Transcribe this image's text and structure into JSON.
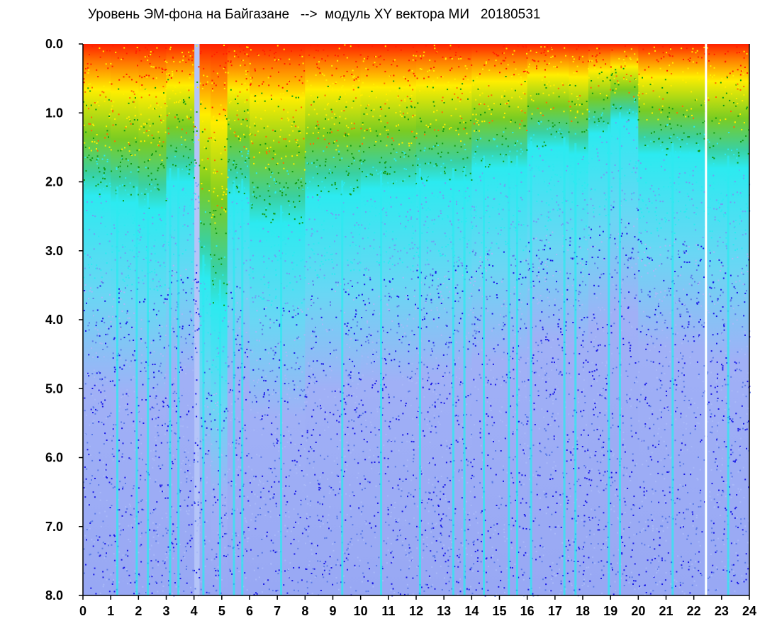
{
  "chart_data": {
    "type": "heatmap",
    "title": "Уровень ЭМ-фона на Байгазане   -->  модуль XY вектора МИ   20180531",
    "xlabel": "",
    "ylabel": "",
    "x_ticks": [
      "0",
      "1",
      "2",
      "3",
      "4",
      "5",
      "6",
      "7",
      "8",
      "9",
      "10",
      "11",
      "12",
      "13",
      "14",
      "15",
      "16",
      "17",
      "18",
      "19",
      "20",
      "21",
      "22",
      "23",
      "24"
    ],
    "y_ticks": [
      "0.0",
      "1.0",
      "2.0",
      "3.0",
      "4.0",
      "5.0",
      "6.0",
      "7.0",
      "8.0"
    ],
    "xlim": [
      0,
      24
    ],
    "ylim": [
      0,
      8
    ],
    "y_inverted": true,
    "grid": false,
    "color_scale": [
      "#ff2a00",
      "#ffff00",
      "#1a9a1a",
      "#22eef0",
      "#9aaaf5",
      "#1010e0"
    ],
    "colors": {
      "background": "#ffffff",
      "axis": "#000000",
      "bright_blue": "#1a1ae6",
      "light_blue": "#a8b8f8",
      "cyan": "#2ceaf0",
      "green": "#119911",
      "yellow": "#ffee00",
      "red": "#ff2000"
    },
    "activity_bands": [
      {
        "x_start": 0.0,
        "x_end": 1.0,
        "top_depth": 2.2
      },
      {
        "x_start": 1.0,
        "x_end": 2.0,
        "top_depth": 2.3
      },
      {
        "x_start": 2.0,
        "x_end": 3.0,
        "top_depth": 2.4
      },
      {
        "x_start": 3.0,
        "x_end": 4.0,
        "top_depth": 2.0
      },
      {
        "x_start": 4.2,
        "x_end": 4.6,
        "top_depth": 3.4
      },
      {
        "x_start": 4.6,
        "x_end": 5.2,
        "top_depth": 3.8
      },
      {
        "x_start": 5.2,
        "x_end": 6.0,
        "top_depth": 2.2
      },
      {
        "x_start": 6.0,
        "x_end": 8.0,
        "top_depth": 2.6
      },
      {
        "x_start": 8.0,
        "x_end": 10.0,
        "top_depth": 2.2
      },
      {
        "x_start": 10.0,
        "x_end": 12.0,
        "top_depth": 2.1
      },
      {
        "x_start": 12.0,
        "x_end": 14.0,
        "top_depth": 2.0
      },
      {
        "x_start": 14.0,
        "x_end": 16.0,
        "top_depth": 1.8
      },
      {
        "x_start": 16.0,
        "x_end": 17.5,
        "top_depth": 1.5
      },
      {
        "x_start": 17.5,
        "x_end": 18.2,
        "top_depth": 1.6
      },
      {
        "x_start": 18.2,
        "x_end": 19.0,
        "top_depth": 1.3
      },
      {
        "x_start": 19.0,
        "x_end": 20.0,
        "top_depth": 1.1
      },
      {
        "x_start": 20.0,
        "x_end": 22.4,
        "top_depth": 1.6
      },
      {
        "x_start": 22.4,
        "x_end": 24.0,
        "top_depth": 1.8
      }
    ],
    "vertical_streaks": [
      1.2,
      1.9,
      2.3,
      3.1,
      3.4,
      4.3,
      4.9,
      5.4,
      5.7,
      7.1,
      9.3,
      10.7,
      12.1,
      13.3,
      13.7,
      14.4,
      15.3,
      15.6,
      16.1,
      17.3,
      17.7,
      18.9,
      19.3,
      21.2,
      22.4,
      23.2
    ],
    "gap_x": 22.4
  }
}
